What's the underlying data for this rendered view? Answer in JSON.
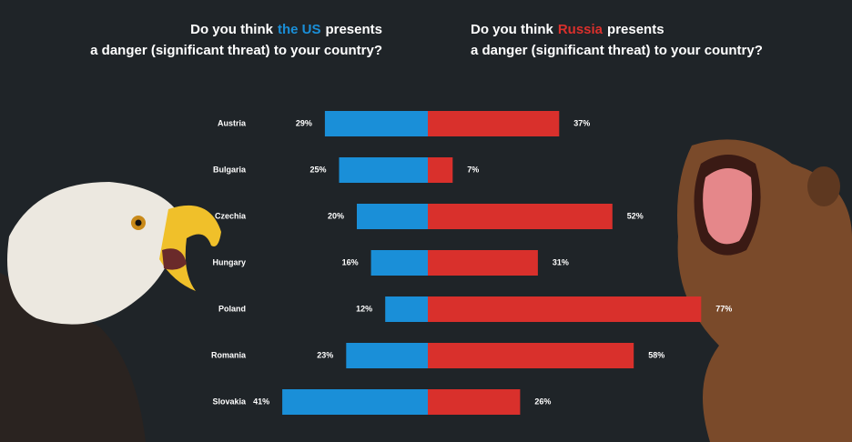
{
  "chart_data": {
    "type": "diverging_bar",
    "left_title": {
      "start": "Do you think",
      "end": "presents",
      "line2": "a danger (significant threat) to your country?"
    },
    "right_title": {
      "start": "Do you think",
      "end": "presents",
      "line2": "a danger (significant threat) to your country?"
    },
    "categories": [
      "Austria",
      "Bulgaria",
      "Czechia",
      "Hungary",
      "Poland",
      "Romania",
      "Slovakia"
    ],
    "series": [
      {
        "name": "the US",
        "color": "#1a8fd8",
        "values": [
          29,
          25,
          20,
          16,
          12,
          23,
          41
        ],
        "value_labels": [
          "29%",
          "25%",
          "20%",
          "16%",
          "12%",
          "23%",
          "41%"
        ]
      },
      {
        "name": "Russia",
        "color": "#d9302c",
        "values": [
          37,
          7,
          52,
          31,
          77,
          58,
          26
        ],
        "value_labels": [
          "37%",
          "7%",
          "52%",
          "31%",
          "77%",
          "58%",
          "26%"
        ]
      }
    ]
  }
}
